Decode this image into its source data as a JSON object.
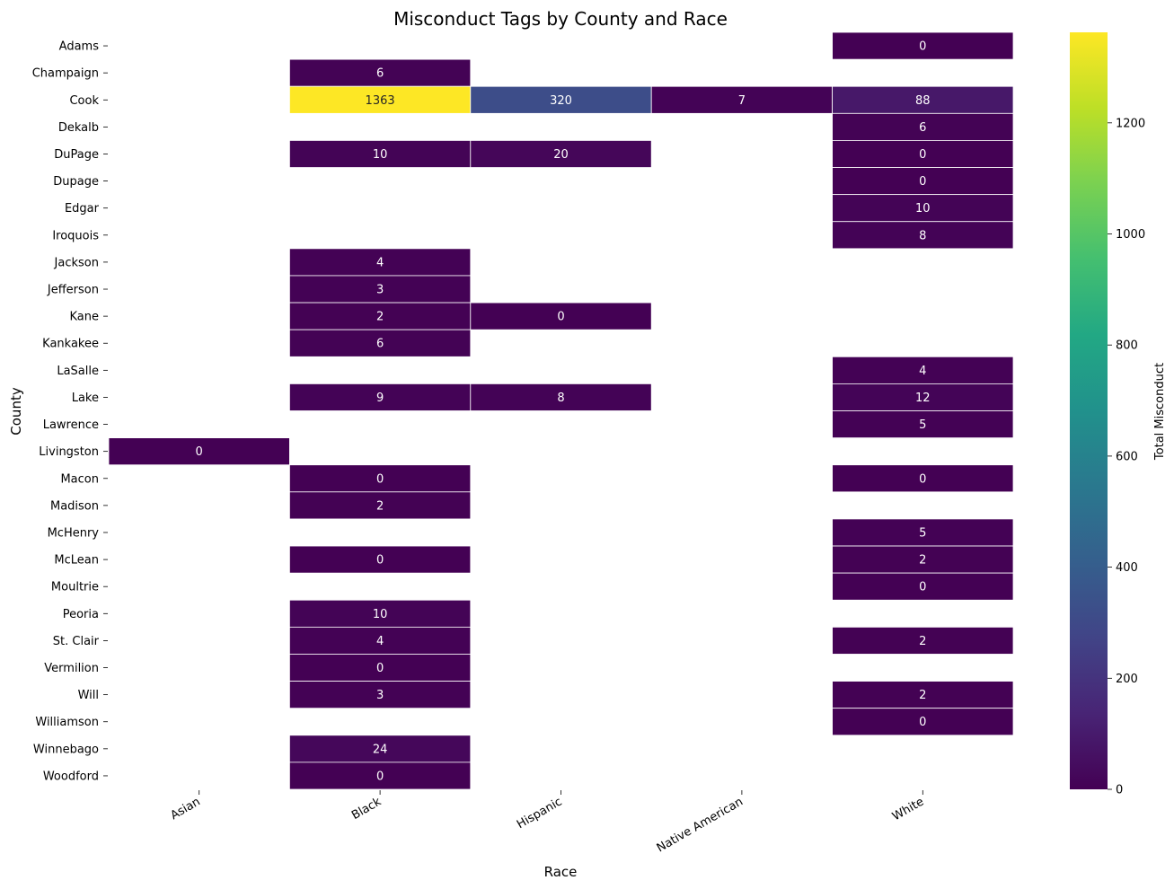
{
  "chart_data": {
    "type": "heatmap",
    "title": "Misconduct Tags by County and Race",
    "xlabel": "Race",
    "ylabel": "County",
    "colorbar_label": "Total Misconduct",
    "colormap": "viridis",
    "vmin": 0,
    "vmax": 1363,
    "colorbar_ticks": [
      0,
      200,
      400,
      600,
      800,
      1000,
      1200
    ],
    "columns": [
      "Asian",
      "Black",
      "Hispanic",
      "Native American",
      "White"
    ],
    "rows": [
      "Adams",
      "Champaign",
      "Cook",
      "Dekalb",
      "DuPage",
      "Dupage",
      "Edgar",
      "Iroquois",
      "Jackson",
      "Jefferson",
      "Kane",
      "Kankakee",
      "LaSalle",
      "Lake",
      "Lawrence",
      "Livingston",
      "Macon",
      "Madison",
      "McHenry",
      "McLean",
      "Moultrie",
      "Peoria",
      "St. Clair",
      "Vermilion",
      "Will",
      "Williamson",
      "Winnebago",
      "Woodford"
    ],
    "values": [
      [
        null,
        null,
        null,
        null,
        0
      ],
      [
        null,
        6,
        null,
        null,
        null
      ],
      [
        null,
        1363,
        320,
        7,
        88
      ],
      [
        null,
        null,
        null,
        null,
        6
      ],
      [
        null,
        10,
        20,
        null,
        0
      ],
      [
        null,
        null,
        null,
        null,
        0
      ],
      [
        null,
        null,
        null,
        null,
        10
      ],
      [
        null,
        null,
        null,
        null,
        8
      ],
      [
        null,
        4,
        null,
        null,
        null
      ],
      [
        null,
        3,
        null,
        null,
        null
      ],
      [
        null,
        2,
        0,
        null,
        null
      ],
      [
        null,
        6,
        null,
        null,
        null
      ],
      [
        null,
        null,
        null,
        null,
        4
      ],
      [
        null,
        9,
        8,
        null,
        12
      ],
      [
        null,
        null,
        null,
        null,
        5
      ],
      [
        0,
        null,
        null,
        null,
        null
      ],
      [
        null,
        0,
        null,
        null,
        0
      ],
      [
        null,
        2,
        null,
        null,
        null
      ],
      [
        null,
        null,
        null,
        null,
        5
      ],
      [
        null,
        0,
        null,
        null,
        2
      ],
      [
        null,
        null,
        null,
        null,
        0
      ],
      [
        null,
        10,
        null,
        null,
        null
      ],
      [
        null,
        4,
        null,
        null,
        2
      ],
      [
        null,
        0,
        null,
        null,
        null
      ],
      [
        null,
        3,
        null,
        null,
        2
      ],
      [
        null,
        null,
        null,
        null,
        0
      ],
      [
        null,
        24,
        null,
        null,
        null
      ],
      [
        null,
        0,
        null,
        null,
        null
      ]
    ]
  }
}
